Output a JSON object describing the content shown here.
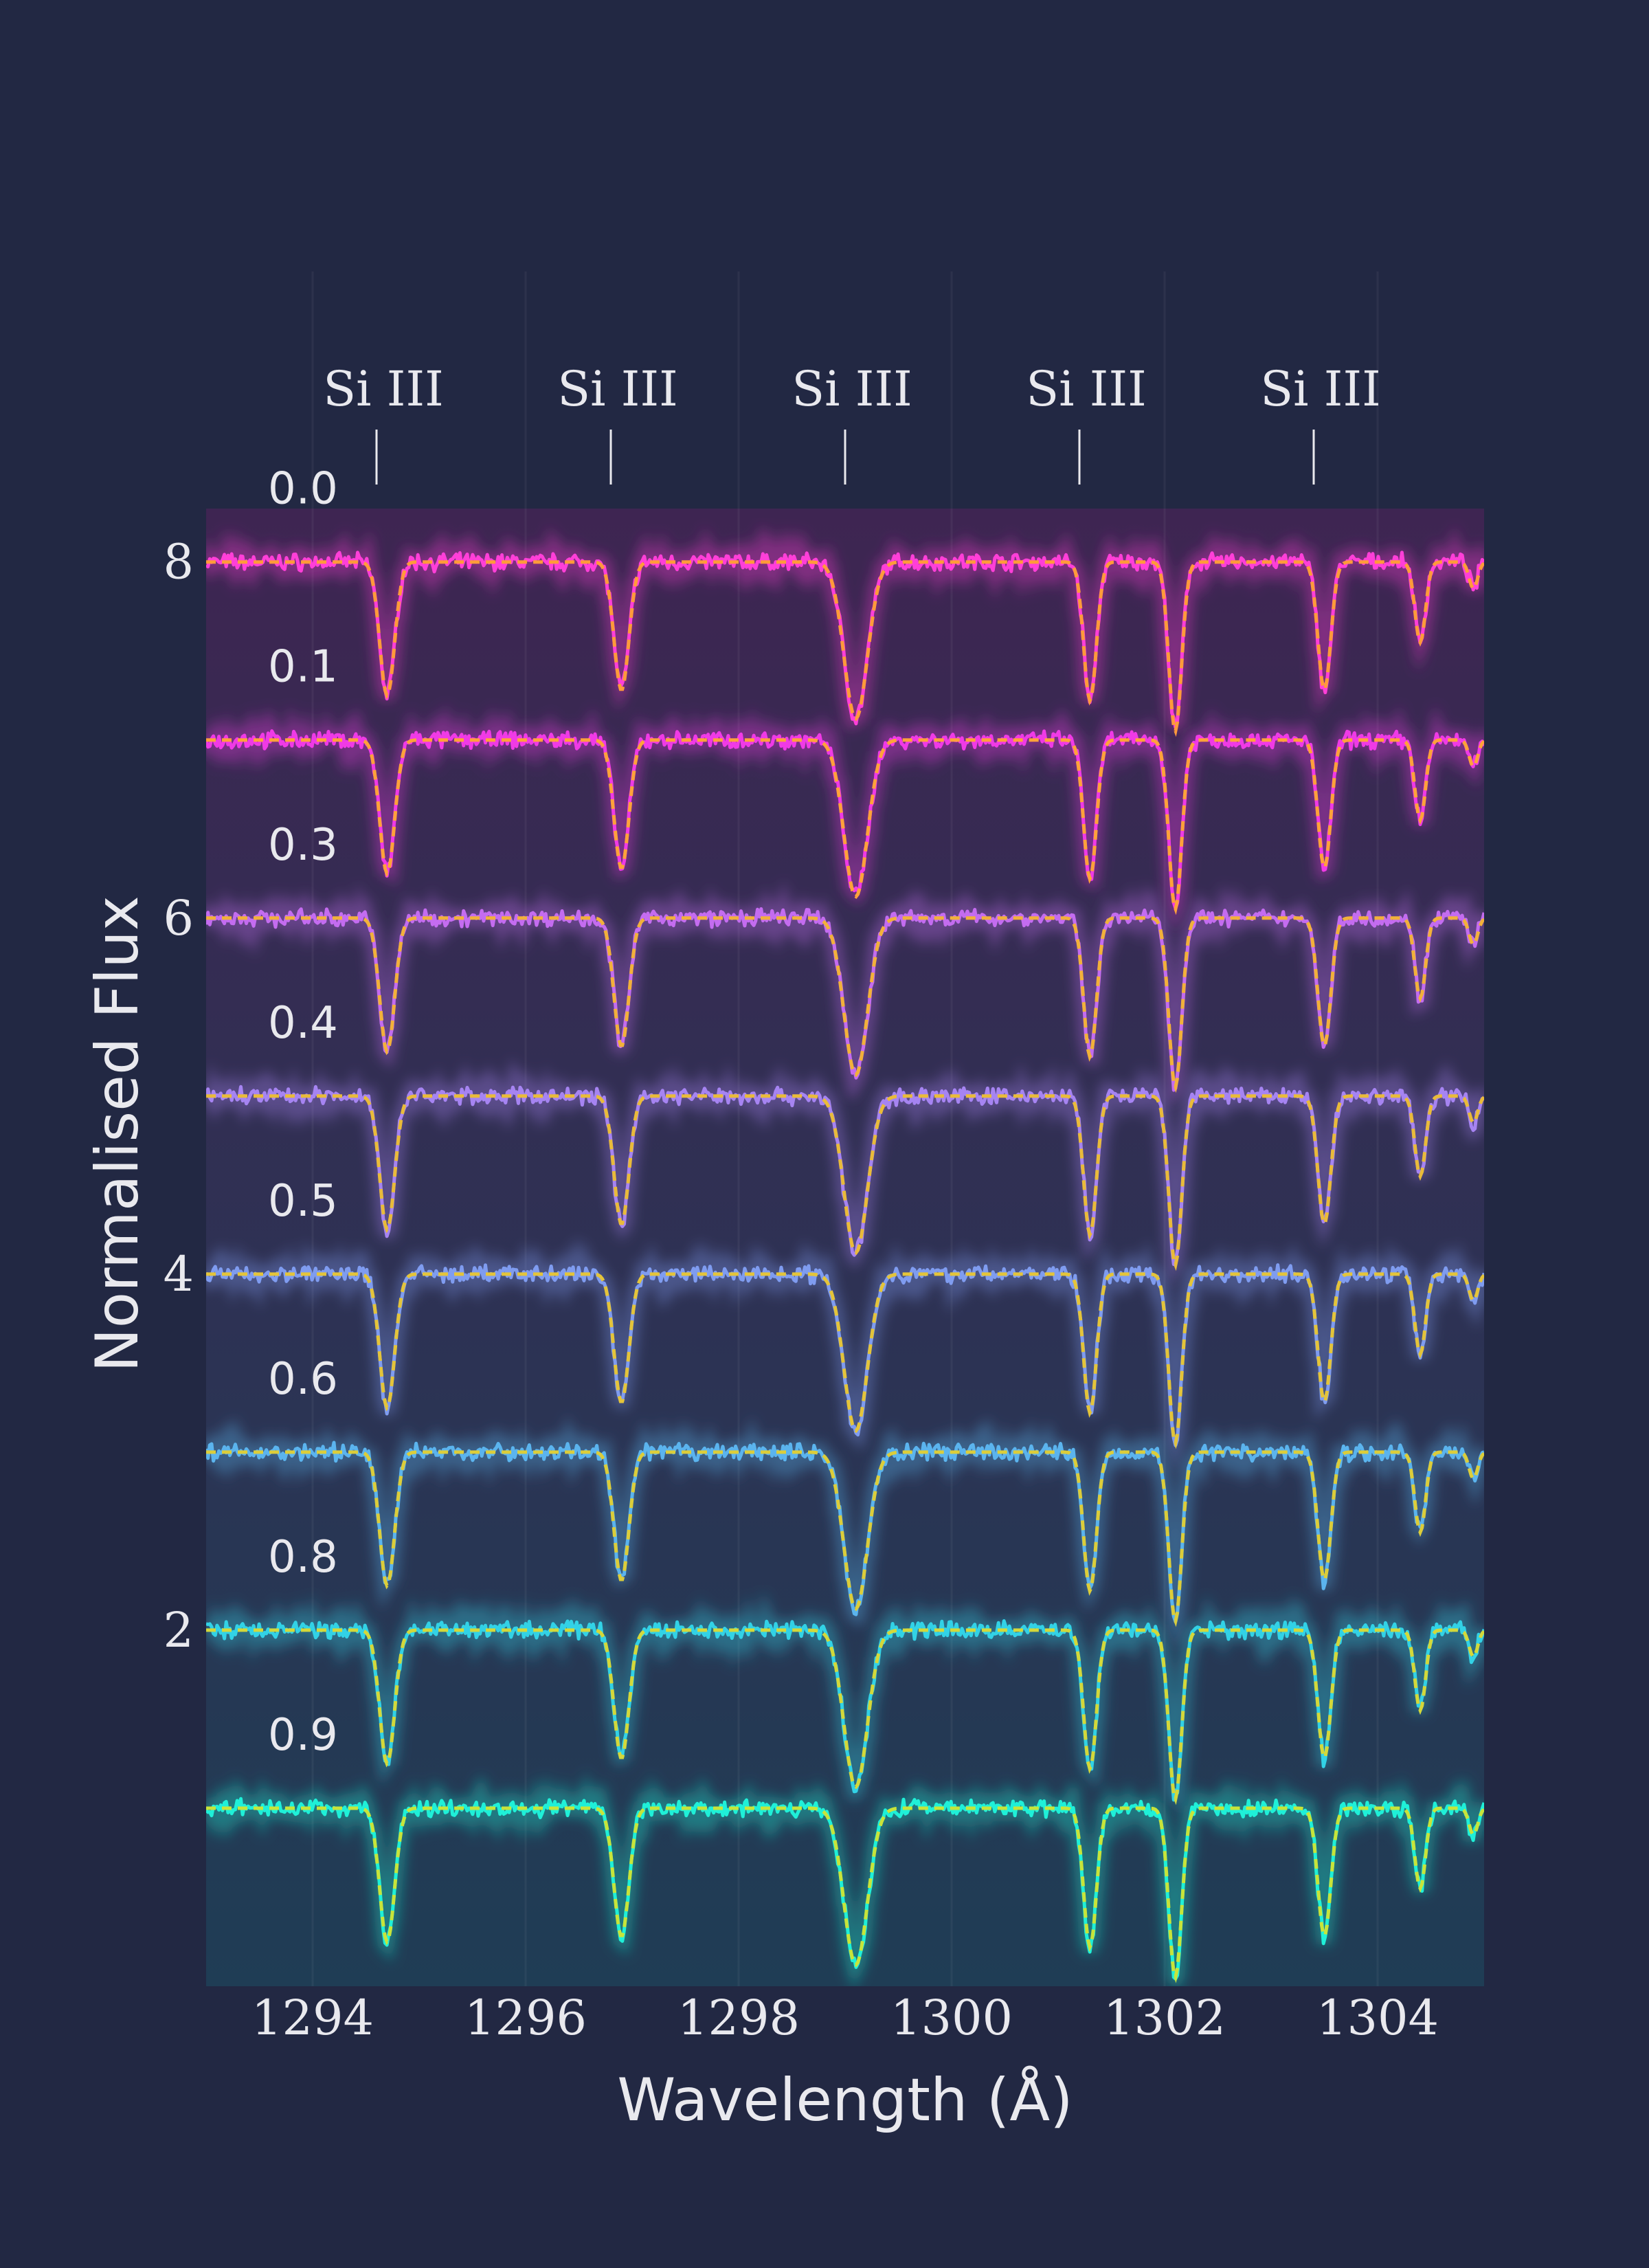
{
  "chart_data": {
    "type": "line",
    "xlabel": "Wavelength (Å)",
    "ylabel": "Normalised Flux",
    "xlim": [
      1293,
      1305
    ],
    "ylim": [
      0,
      8.3
    ],
    "x_ticks": [
      1294,
      1296,
      1298,
      1300,
      1302,
      1304
    ],
    "y_ticks": [
      2,
      4,
      6,
      8
    ],
    "grid": false,
    "line_annotations": [
      {
        "label": "Si III",
        "wavelength": 1294.6
      },
      {
        "label": "Si III",
        "wavelength": 1296.8
      },
      {
        "label": "Si III",
        "wavelength": 1299.0
      },
      {
        "label": "Si III",
        "wavelength": 1301.2
      },
      {
        "label": "Si III",
        "wavelength": 1303.4
      }
    ],
    "absorption_lines": [
      {
        "wavelength": 1294.7,
        "depth": 0.75,
        "width": 0.07
      },
      {
        "wavelength": 1296.9,
        "depth": 0.72,
        "width": 0.07
      },
      {
        "wavelength": 1299.1,
        "depth": 0.88,
        "width": 0.11
      },
      {
        "wavelength": 1301.3,
        "depth": 0.78,
        "width": 0.06
      },
      {
        "wavelength": 1302.1,
        "depth": 0.95,
        "width": 0.06
      },
      {
        "wavelength": 1303.5,
        "depth": 0.72,
        "width": 0.06
      },
      {
        "wavelength": 1304.4,
        "depth": 0.45,
        "width": 0.05
      },
      {
        "wavelength": 1304.9,
        "depth": 0.15,
        "width": 0.04
      }
    ],
    "series": [
      {
        "phase": "0.0",
        "offset": 8,
        "color": "#ff3fd8"
      },
      {
        "phase": "0.1",
        "offset": 7,
        "color": "#f03ae6"
      },
      {
        "phase": "0.3",
        "offset": 6,
        "color": "#c46cf0"
      },
      {
        "phase": "0.4",
        "offset": 5,
        "color": "#a684f2"
      },
      {
        "phase": "0.5",
        "offset": 4,
        "color": "#7f9cf0"
      },
      {
        "phase": "0.6",
        "offset": 3,
        "color": "#5bb4ee"
      },
      {
        "phase": "0.8",
        "offset": 2,
        "color": "#32d2e6"
      },
      {
        "phase": "0.9",
        "offset": 1,
        "color": "#1ff0d8"
      }
    ],
    "model_colors": [
      "#ff9b3a",
      "#ffa23a",
      "#f2b13a",
      "#e9bb3a",
      "#e4c43a",
      "#dccd3a",
      "#d4d83a",
      "#c8e43a"
    ],
    "background_gradient": [
      "#3e2552",
      "#1f3d55"
    ]
  }
}
